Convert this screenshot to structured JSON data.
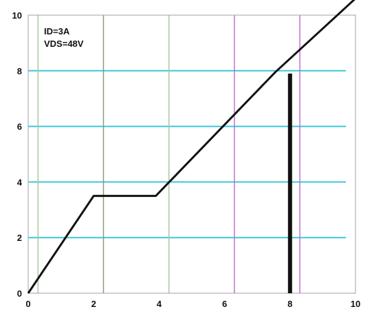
{
  "chart_data": {
    "type": "line",
    "annotations": [
      "ID=3A",
      "VDS=48V"
    ],
    "xlim": [
      0,
      10
    ],
    "ylim": [
      0,
      10
    ],
    "x_ticks": [
      "0",
      "2",
      "4",
      "6",
      "8",
      "10"
    ],
    "y_ticks": [
      "0",
      "2",
      "4",
      "6",
      "8",
      "10"
    ],
    "series": [
      {
        "x": [
          0,
          2,
          3.9,
          7.55,
          10
        ],
        "y": [
          0,
          3.5,
          3.5,
          7.95,
          10.6
        ]
      }
    ],
    "marker_x": 8,
    "grid": true,
    "colors": {
      "horizontal_grid": "#3cc8d8",
      "vertical_grid_light": "#a8c8a0",
      "vertical_grid_mid": "#8a9a7a",
      "vertical_grid_purple": "#c070d0",
      "line": "#111111",
      "frame": "#a0a0a0"
    }
  }
}
